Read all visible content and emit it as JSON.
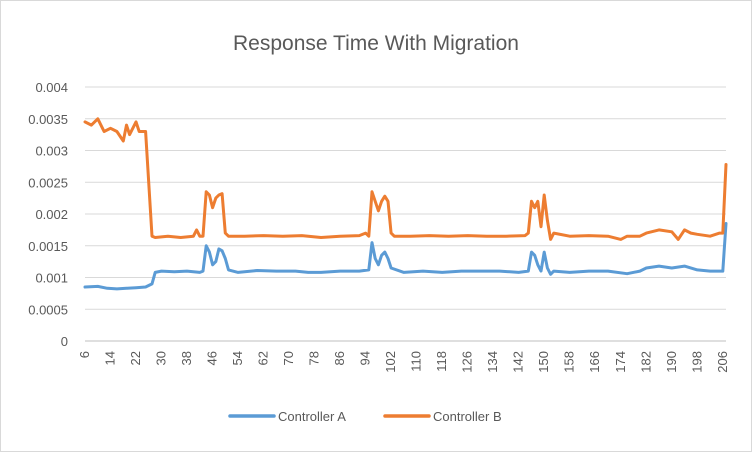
{
  "chart_data": {
    "type": "line",
    "title": "Response Time With Migration",
    "xlabel": "",
    "ylabel": "",
    "ylim": [
      0,
      0.004
    ],
    "y_ticks": [
      "0",
      "0.0005",
      "0.001",
      "0.0015",
      "0.002",
      "0.0025",
      "0.003",
      "0.0035",
      "0.004"
    ],
    "x_start": 6,
    "x_end": 207,
    "x_ticks": [
      "6",
      "14",
      "22",
      "30",
      "38",
      "46",
      "54",
      "62",
      "70",
      "78",
      "86",
      "94",
      "102",
      "110",
      "118",
      "126",
      "134",
      "142",
      "150",
      "158",
      "166",
      "174",
      "182",
      "190",
      "198",
      "206"
    ],
    "grid": true,
    "legend": "bottom",
    "series": [
      {
        "name": "Controller A",
        "color": "#5b9bd5",
        "keypoints": [
          [
            6,
            0.00085
          ],
          [
            10,
            0.00086
          ],
          [
            13,
            0.00083
          ],
          [
            16,
            0.00082
          ],
          [
            19,
            0.00083
          ],
          [
            22,
            0.00084
          ],
          [
            25,
            0.00085
          ],
          [
            27,
            0.0009
          ],
          [
            28,
            0.00108
          ],
          [
            30,
            0.0011
          ],
          [
            34,
            0.00109
          ],
          [
            38,
            0.0011
          ],
          [
            42,
            0.00108
          ],
          [
            43,
            0.0011
          ],
          [
            44,
            0.0015
          ],
          [
            45,
            0.0014
          ],
          [
            46,
            0.0012
          ],
          [
            47,
            0.00125
          ],
          [
            48,
            0.00145
          ],
          [
            49,
            0.00142
          ],
          [
            50,
            0.0013
          ],
          [
            51,
            0.00112
          ],
          [
            54,
            0.00108
          ],
          [
            60,
            0.00111
          ],
          [
            66,
            0.0011
          ],
          [
            72,
            0.0011
          ],
          [
            76,
            0.00108
          ],
          [
            80,
            0.00108
          ],
          [
            86,
            0.0011
          ],
          [
            92,
            0.0011
          ],
          [
            95,
            0.00112
          ],
          [
            96,
            0.00155
          ],
          [
            97,
            0.0013
          ],
          [
            98,
            0.0012
          ],
          [
            99,
            0.00135
          ],
          [
            100,
            0.0014
          ],
          [
            101,
            0.0013
          ],
          [
            102,
            0.00115
          ],
          [
            106,
            0.00108
          ],
          [
            112,
            0.0011
          ],
          [
            118,
            0.00108
          ],
          [
            124,
            0.0011
          ],
          [
            130,
            0.0011
          ],
          [
            136,
            0.0011
          ],
          [
            142,
            0.00108
          ],
          [
            145,
            0.0011
          ],
          [
            146,
            0.0014
          ],
          [
            147,
            0.00135
          ],
          [
            148,
            0.0012
          ],
          [
            149,
            0.0011
          ],
          [
            150,
            0.0014
          ],
          [
            151,
            0.00115
          ],
          [
            152,
            0.00105
          ],
          [
            153,
            0.0011
          ],
          [
            158,
            0.00108
          ],
          [
            164,
            0.0011
          ],
          [
            170,
            0.0011
          ],
          [
            176,
            0.00106
          ],
          [
            180,
            0.0011
          ],
          [
            182,
            0.00115
          ],
          [
            186,
            0.00118
          ],
          [
            190,
            0.00115
          ],
          [
            194,
            0.00118
          ],
          [
            198,
            0.00112
          ],
          [
            202,
            0.0011
          ],
          [
            205,
            0.0011
          ],
          [
            206,
            0.0011
          ],
          [
            207,
            0.00185
          ]
        ]
      },
      {
        "name": "Controller B",
        "color": "#ed7d31",
        "keypoints": [
          [
            6,
            0.00345
          ],
          [
            8,
            0.0034
          ],
          [
            10,
            0.0035
          ],
          [
            12,
            0.0033
          ],
          [
            14,
            0.00335
          ],
          [
            16,
            0.0033
          ],
          [
            18,
            0.00315
          ],
          [
            19,
            0.0034
          ],
          [
            20,
            0.00325
          ],
          [
            22,
            0.00345
          ],
          [
            23,
            0.0033
          ],
          [
            25,
            0.0033
          ],
          [
            27,
            0.00165
          ],
          [
            28,
            0.00163
          ],
          [
            32,
            0.00165
          ],
          [
            36,
            0.00163
          ],
          [
            40,
            0.00165
          ],
          [
            41,
            0.00175
          ],
          [
            42,
            0.00165
          ],
          [
            43,
            0.00165
          ],
          [
            44,
            0.00235
          ],
          [
            45,
            0.0023
          ],
          [
            46,
            0.0021
          ],
          [
            47,
            0.00225
          ],
          [
            48,
            0.0023
          ],
          [
            49,
            0.00232
          ],
          [
            50,
            0.0017
          ],
          [
            51,
            0.00165
          ],
          [
            56,
            0.00165
          ],
          [
            62,
            0.00166
          ],
          [
            68,
            0.00165
          ],
          [
            74,
            0.00166
          ],
          [
            80,
            0.00163
          ],
          [
            86,
            0.00165
          ],
          [
            92,
            0.00166
          ],
          [
            94,
            0.0017
          ],
          [
            95,
            0.00165
          ],
          [
            96,
            0.00235
          ],
          [
            97,
            0.0022
          ],
          [
            98,
            0.00205
          ],
          [
            99,
            0.0022
          ],
          [
            100,
            0.00228
          ],
          [
            101,
            0.0022
          ],
          [
            102,
            0.0017
          ],
          [
            103,
            0.00165
          ],
          [
            108,
            0.00165
          ],
          [
            114,
            0.00166
          ],
          [
            120,
            0.00165
          ],
          [
            126,
            0.00166
          ],
          [
            132,
            0.00165
          ],
          [
            138,
            0.00165
          ],
          [
            144,
            0.00166
          ],
          [
            145,
            0.0017
          ],
          [
            146,
            0.0022
          ],
          [
            147,
            0.0021
          ],
          [
            148,
            0.0022
          ],
          [
            149,
            0.0018
          ],
          [
            150,
            0.0023
          ],
          [
            151,
            0.0019
          ],
          [
            152,
            0.0016
          ],
          [
            153,
            0.0017
          ],
          [
            158,
            0.00165
          ],
          [
            164,
            0.00166
          ],
          [
            170,
            0.00165
          ],
          [
            174,
            0.0016
          ],
          [
            176,
            0.00165
          ],
          [
            180,
            0.00165
          ],
          [
            182,
            0.0017
          ],
          [
            186,
            0.00175
          ],
          [
            190,
            0.00172
          ],
          [
            192,
            0.0016
          ],
          [
            194,
            0.00175
          ],
          [
            196,
            0.0017
          ],
          [
            198,
            0.00168
          ],
          [
            202,
            0.00165
          ],
          [
            205,
            0.0017
          ],
          [
            206,
            0.0017
          ],
          [
            207,
            0.00278
          ]
        ]
      }
    ]
  }
}
